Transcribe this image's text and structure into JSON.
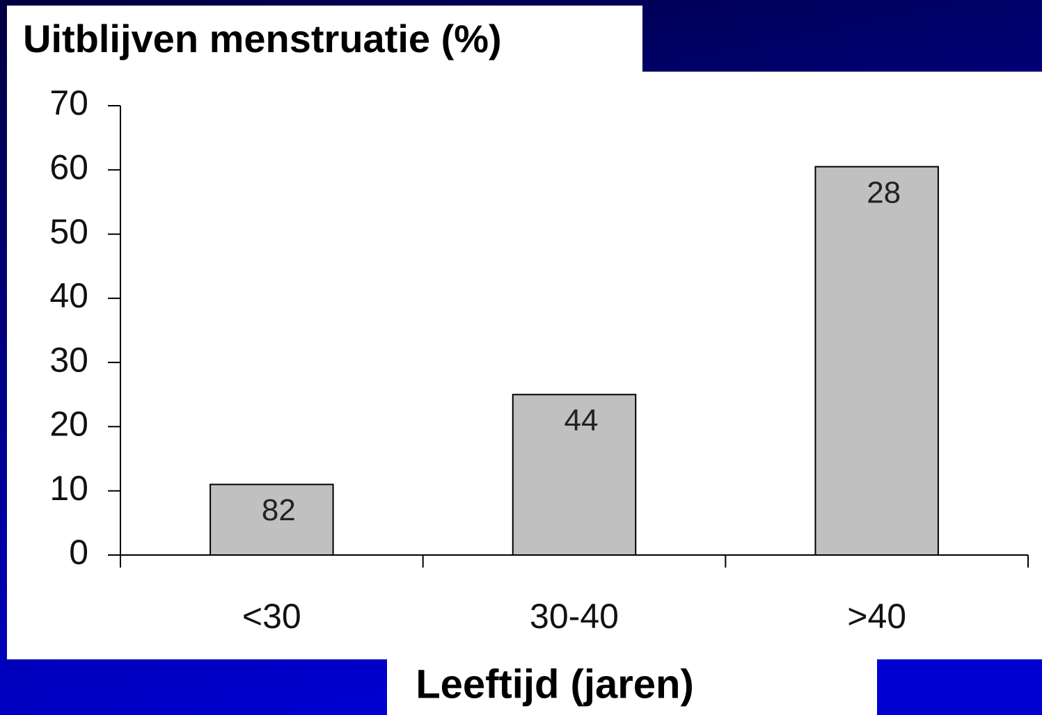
{
  "chart_data": {
    "type": "bar",
    "title": "Uitblijven menstruatie (%)",
    "x_label": "Leeftijd (jaren)",
    "categories": [
      "<30",
      "30-40",
      ">40"
    ],
    "values": [
      11,
      25,
      60.5
    ],
    "bar_labels": [
      82,
      44,
      28
    ],
    "color": "#c0c0c0",
    "ylim": [
      0,
      70
    ],
    "yticks": [
      0,
      10,
      20,
      30,
      40,
      50,
      60,
      70
    ],
    "grid": false
  }
}
